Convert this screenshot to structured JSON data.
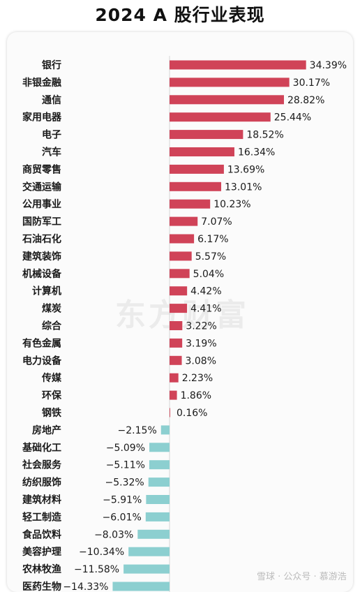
{
  "title": "2024 A 股行业表现",
  "watermark": "东方财富",
  "footer_text": "雪球 · 公众号 · 慕游浩",
  "chart_data": {
    "type": "bar",
    "orientation": "horizontal",
    "title": "2024 A 股行业表现",
    "positive_color": "#d04358",
    "negative_color": "#8ccfd0",
    "categories": [
      "银行",
      "非银金融",
      "通信",
      "家用电器",
      "电子",
      "汽车",
      "商贸零售",
      "交通运输",
      "公用事业",
      "国防军工",
      "石油石化",
      "建筑装饰",
      "机械设备",
      "计算机",
      "煤炭",
      "综合",
      "有色金属",
      "电力设备",
      "传媒",
      "环保",
      "钢铁",
      "房地产",
      "基础化工",
      "社会服务",
      "纺织服饰",
      "建筑材料",
      "轻工制造",
      "食品饮料",
      "美容护理",
      "农林牧渔",
      "医药生物"
    ],
    "values": [
      34.39,
      30.17,
      28.82,
      25.44,
      18.52,
      16.34,
      13.69,
      13.01,
      10.23,
      7.07,
      6.17,
      5.57,
      5.04,
      4.42,
      4.41,
      3.22,
      3.19,
      3.08,
      2.23,
      1.86,
      0.16,
      -2.15,
      -5.09,
      -5.11,
      -5.32,
      -5.91,
      -6.01,
      -8.03,
      -10.34,
      -11.58,
      -14.33
    ],
    "labels": [
      "34.39%",
      "30.17%",
      "28.82%",
      "25.44%",
      "18.52%",
      "16.34%",
      "13.69%",
      "13.01%",
      "10.23%",
      "7.07%",
      "6.17%",
      "5.57%",
      "5.04%",
      "4.42%",
      "4.41%",
      "3.22%",
      "3.19%",
      "3.08%",
      "2.23%",
      "1.86%",
      "0.16%",
      "−2.15%",
      "−5.09%",
      "−5.11%",
      "−5.32%",
      "−5.91%",
      "−6.01%",
      "−8.03%",
      "−10.34%",
      "−11.58%",
      "−14.33%"
    ]
  }
}
